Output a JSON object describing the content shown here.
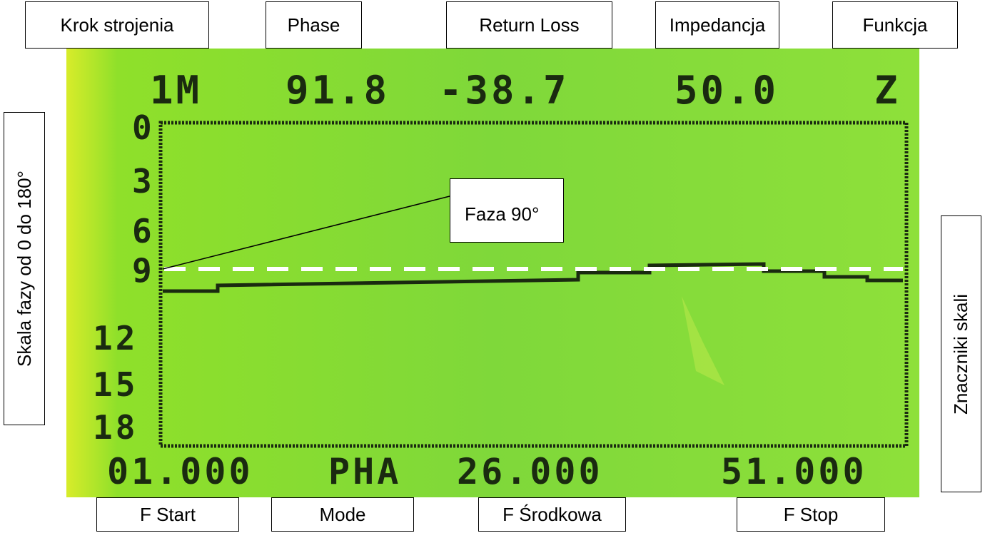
{
  "header": {
    "labels": [
      "Krok strojenia",
      "Phase",
      "Return Loss",
      "Impedancja",
      "Funkcja"
    ]
  },
  "side": {
    "left": "Skala  fazy od 0 do 180°",
    "right": "Znaczniki skali"
  },
  "callout": "Faza 90°",
  "footer": {
    "labels": [
      "F Start",
      "Mode",
      "F Środkowa",
      "F Stop"
    ]
  },
  "lcd": {
    "top_row": [
      "1M",
      "91.8",
      "-38.7",
      "50.0",
      "Z"
    ],
    "y_scale": [
      "0",
      "3",
      "6",
      "9",
      "12",
      "15",
      "18"
    ],
    "bottom_row": [
      "01.000",
      "PHA",
      "26.000",
      "51.000"
    ]
  }
}
